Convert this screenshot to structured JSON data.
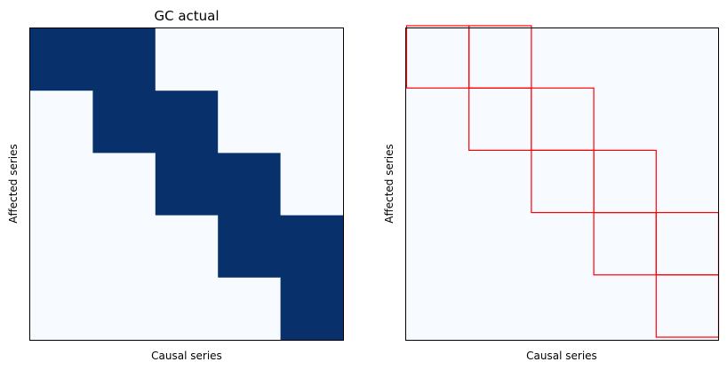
{
  "chart_data": [
    {
      "type": "heatmap",
      "title": "GC actual",
      "xlabel": "Causal series",
      "ylabel": "Affected series",
      "rows": 5,
      "cols": 5,
      "values": [
        [
          1,
          1,
          0,
          0,
          0
        ],
        [
          0,
          1,
          1,
          0,
          0
        ],
        [
          0,
          0,
          1,
          1,
          0
        ],
        [
          0,
          0,
          0,
          1,
          1
        ],
        [
          0,
          0,
          0,
          0,
          1
        ]
      ],
      "colormap": {
        "low": "#f7fbff",
        "high": "#08306b"
      },
      "ticks": false
    },
    {
      "type": "heatmap",
      "title": "",
      "xlabel": "Causal series",
      "ylabel": "Affected series",
      "rows": 5,
      "cols": 5,
      "values": [
        [
          0,
          0,
          0,
          0,
          0
        ],
        [
          0,
          0,
          0,
          0,
          0
        ],
        [
          0,
          0,
          0,
          0,
          0
        ],
        [
          0,
          0,
          0,
          0,
          0
        ],
        [
          0,
          0,
          0,
          0,
          0
        ]
      ],
      "colormap": {
        "low": "#f7fbff",
        "high": "#08306b"
      },
      "highlight_cells": [
        [
          0,
          0
        ],
        [
          0,
          1
        ],
        [
          1,
          1
        ],
        [
          1,
          2
        ],
        [
          2,
          2
        ],
        [
          2,
          3
        ],
        [
          3,
          3
        ],
        [
          3,
          4
        ],
        [
          4,
          4
        ]
      ],
      "highlight_color": "#ff0000",
      "ticks": false
    }
  ]
}
